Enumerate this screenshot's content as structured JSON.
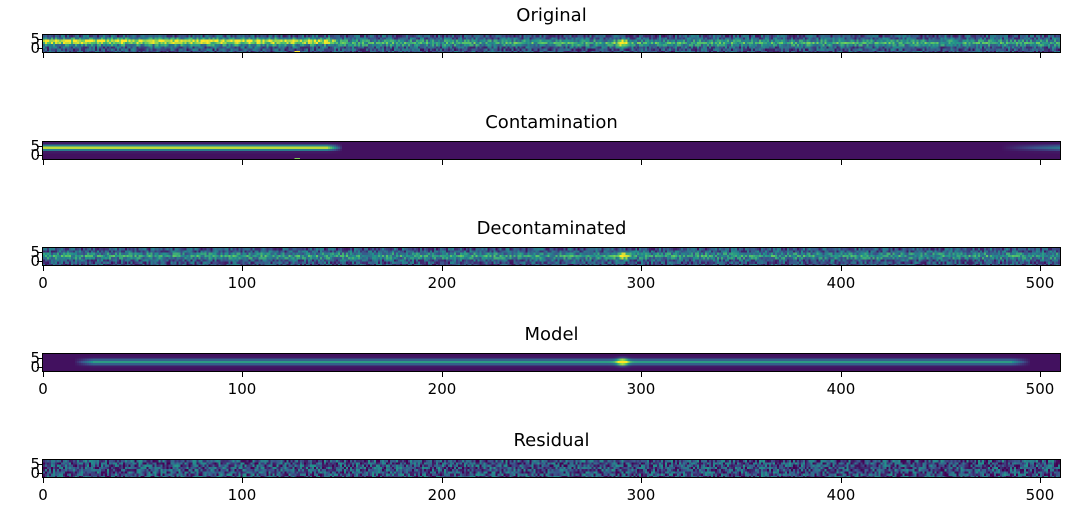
{
  "chart_data": [
    {
      "type": "heatmap",
      "title": "Original",
      "rows": 8,
      "cols": 510,
      "xlim": [
        0,
        510
      ],
      "yticks": [
        "0",
        "5"
      ],
      "xticks": [
        0,
        100,
        200,
        300,
        400,
        500
      ],
      "xtick_labels_shown": false,
      "colormap": "viridis",
      "features": {
        "noise": 0.42,
        "trace_row": 4,
        "trace_strength": 0.35,
        "contam_row": 5,
        "contam_end": 150,
        "contam_strength": 0.45,
        "hotspot_x": 127,
        "hotspot_row": 0,
        "peak_x": 290,
        "peak_strength": 0.6
      }
    },
    {
      "type": "heatmap",
      "title": "Contamination",
      "rows": 8,
      "cols": 510,
      "xlim": [
        0,
        510
      ],
      "yticks": [
        "0",
        "5"
      ],
      "xticks": [
        0,
        100,
        200,
        300,
        400,
        500
      ],
      "xtick_labels_shown": false,
      "colormap": "viridis",
      "features": {
        "noise": 0.0,
        "contam_row": 5,
        "contam_end": 150,
        "contam_strength": 0.85,
        "hotspot_x": 127,
        "hotspot_row": 0,
        "right_glow_start": 480
      }
    },
    {
      "type": "heatmap",
      "title": "Decontaminated",
      "rows": 8,
      "cols": 510,
      "xlim": [
        0,
        510
      ],
      "yticks": [
        "0",
        "5"
      ],
      "xticks": [
        0,
        100,
        200,
        300,
        400,
        500
      ],
      "xtick_labels_shown": true,
      "colormap": "viridis",
      "features": {
        "noise": 0.42,
        "trace_row": 4,
        "trace_strength": 0.3,
        "peak_x": 290,
        "peak_strength": 0.6
      }
    },
    {
      "type": "heatmap",
      "title": "Model",
      "rows": 8,
      "cols": 510,
      "xlim": [
        0,
        510
      ],
      "yticks": [
        "0",
        "5"
      ],
      "xticks": [
        0,
        100,
        200,
        300,
        400,
        500
      ],
      "xtick_labels_shown": true,
      "colormap": "viridis",
      "features": {
        "noise": 0.0,
        "model_row": 4,
        "model_start": 15,
        "model_end": 495,
        "model_strength": 0.5,
        "peak_x": 290,
        "peak_strength": 0.9
      }
    },
    {
      "type": "heatmap",
      "title": "Residual",
      "rows": 8,
      "cols": 510,
      "xlim": [
        0,
        510
      ],
      "yticks": [
        "0",
        "5"
      ],
      "xticks": [
        0,
        100,
        200,
        300,
        400,
        500
      ],
      "xtick_labels_shown": true,
      "colormap": "viridis",
      "features": {
        "noise": 0.55
      }
    }
  ]
}
